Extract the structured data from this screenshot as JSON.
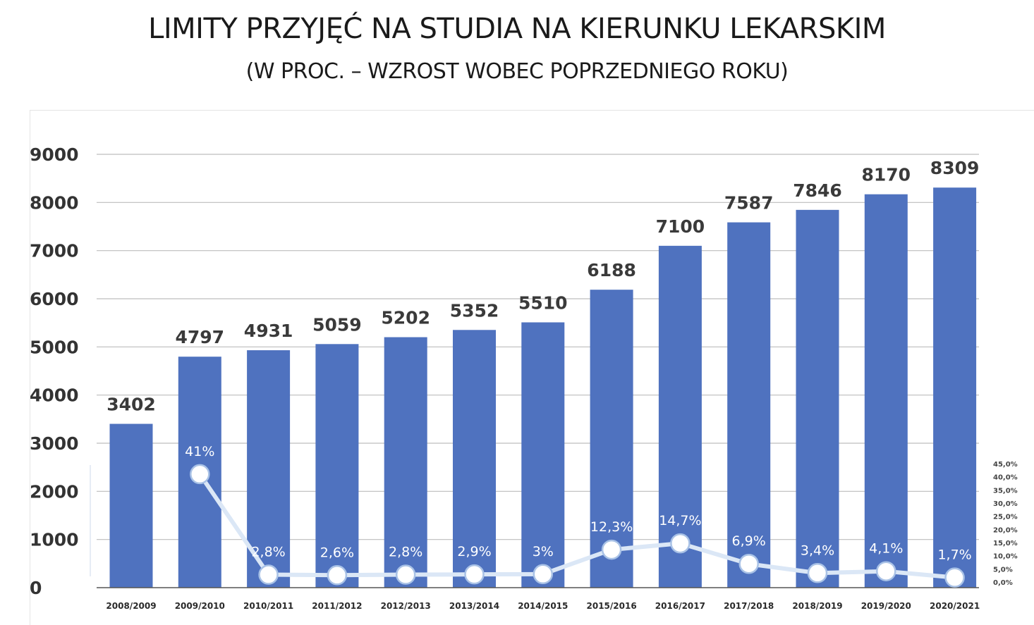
{
  "title": "LIMITY PRZYJĘĆ NA STUDIA NA KIERUNKU LEKARSKIM",
  "subtitle": "(W PROC. – WZROST WOBEC POPRZEDNIEGO ROKU)",
  "colors": {
    "bar": "#4f72bf",
    "line": "#dbe7f6",
    "marker_fill": "#ffffff",
    "marker_stroke": "#a9c2e6",
    "grid": "#bdbdbd"
  },
  "chart_data": [
    {
      "type": "bar",
      "title": "LIMITY PRZYJĘĆ NA STUDIA NA KIERUNKU LEKARSKIM",
      "categories": [
        "2008/2009",
        "2009/2010",
        "2010/2011",
        "2011/2012",
        "2012/2013",
        "2013/2014",
        "2014/2015",
        "2015/2016",
        "2016/2017",
        "2017/2018",
        "2018/2019",
        "2019/2020",
        "2020/2021"
      ],
      "values": [
        3402,
        4797,
        4931,
        5059,
        5202,
        5352,
        5510,
        6188,
        7100,
        7587,
        7846,
        8170,
        8309
      ],
      "ylim": [
        0,
        9000
      ],
      "yticks": [
        "0",
        "1000",
        "2000",
        "3000",
        "4000",
        "5000",
        "6000",
        "7000",
        "8000",
        "9000"
      ],
      "grid": true
    },
    {
      "type": "line",
      "title": "(W PROC. – WZROST WOBEC POPRZEDNIEGO ROKU)",
      "categories": [
        "2009/2010",
        "2010/2011",
        "2011/2012",
        "2012/2013",
        "2013/2014",
        "2014/2015",
        "2015/2016",
        "2016/2017",
        "2017/2018",
        "2018/2019",
        "2019/2020",
        "2020/2021"
      ],
      "values": [
        41,
        2.8,
        2.6,
        2.8,
        2.9,
        3,
        12.3,
        14.7,
        6.9,
        3.4,
        4.1,
        1.7
      ],
      "labels": [
        "41%",
        "2,8%",
        "2,6%",
        "2,8%",
        "2,9%",
        "3%",
        "12,3%",
        "14,7%",
        "6,9%",
        "3,4%",
        "4,1%",
        "1,7%"
      ],
      "ylim": [
        0,
        45
      ],
      "yticks": [
        "0,0%",
        "5,0%",
        "10,0%",
        "15,0%",
        "20,0%",
        "25,0%",
        "30,0%",
        "35,0%",
        "40,0%",
        "45,0%"
      ],
      "axis": "right"
    }
  ]
}
